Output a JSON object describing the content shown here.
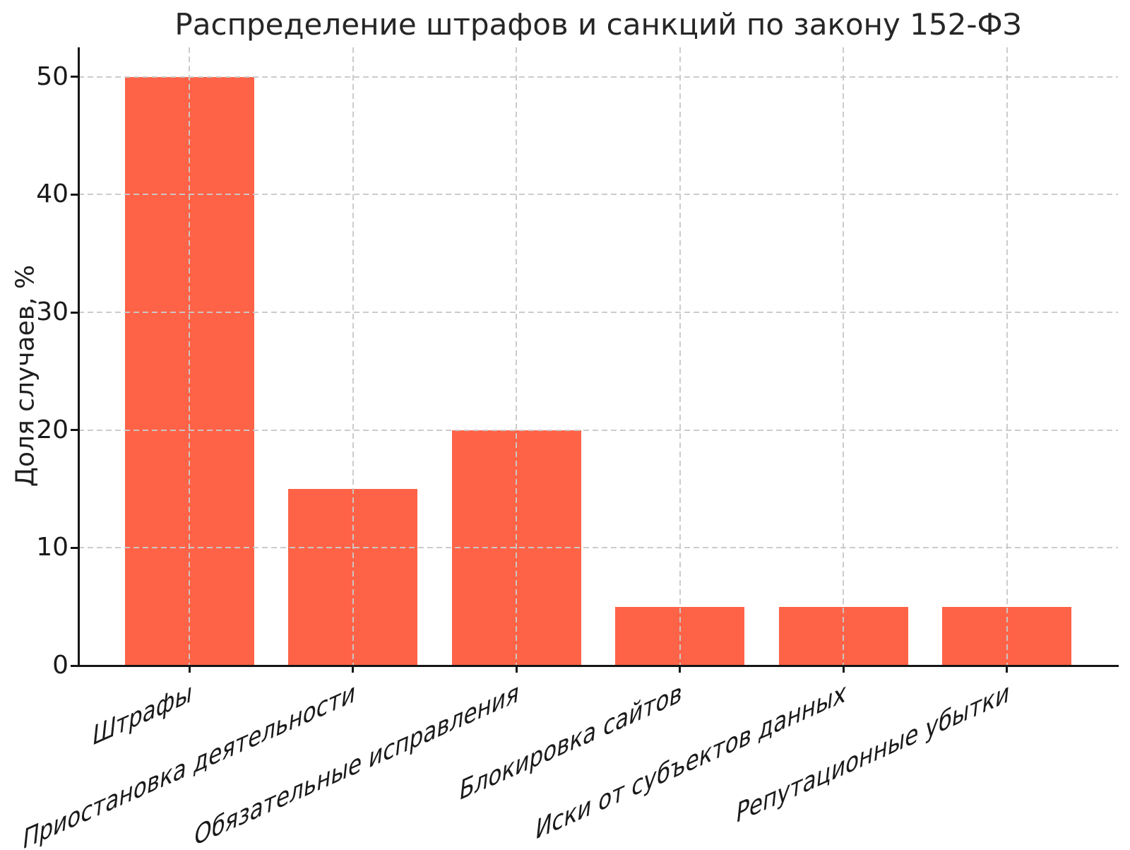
{
  "figure": {
    "background": "#ffffff"
  },
  "chart_data": {
    "type": "bar",
    "title": "Распределение штрафов и санкций по закону 152-ФЗ",
    "ylabel": "Доля случаев, %",
    "xlabel": "",
    "categories": [
      "Штрафы",
      "Приостановка деятельности",
      "Обязательные исправления",
      "Блокировка сайтов",
      "Иски от субъектов данных",
      "Репутационные убытки"
    ],
    "values": [
      50,
      15,
      20,
      5,
      5,
      5
    ],
    "unit": "%",
    "yticks": [
      0,
      10,
      20,
      30,
      40,
      50
    ],
    "ylim": [
      0,
      52.5
    ],
    "xlim": [
      -0.68,
      5.68
    ],
    "bar_width": 0.79,
    "bar_color": "#FF6347",
    "grid_color": "#c9c9c9",
    "axis_color": "#151515",
    "text_color": "#1a1a1a",
    "grid": "both-axes-dashed",
    "legend": "none",
    "xtick_rotation_deg": 24
  }
}
